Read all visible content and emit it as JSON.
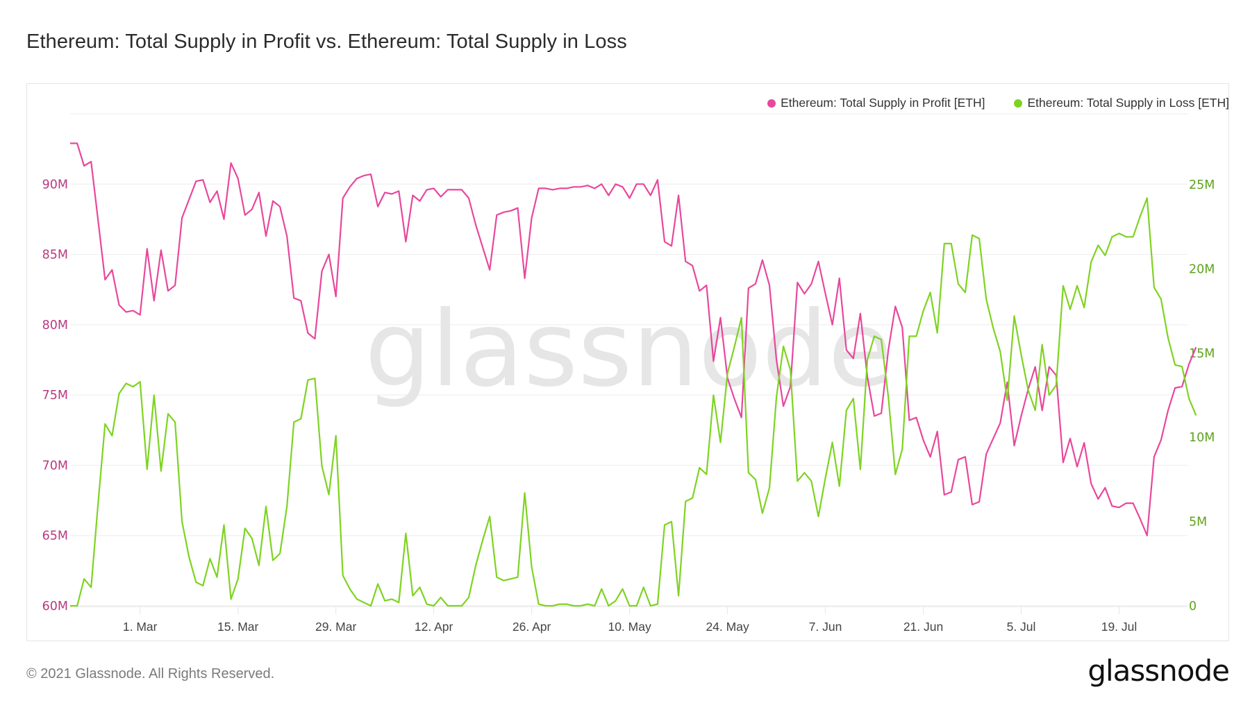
{
  "page": {
    "title": "Ethereum: Total Supply in Profit vs. Ethereum: Total Supply in Loss",
    "footer_copyright": "© 2021 Glassnode. All Rights Reserved.",
    "footer_logo": "glassnode",
    "watermark": "glassnode"
  },
  "chart_data": {
    "type": "line",
    "title": "Ethereum: Total Supply in Profit vs. Ethereum: Total Supply in Loss",
    "xlabel": "",
    "x_start_date": "2021-02-19",
    "x_tick_labels": [
      "1. Mar",
      "15. Mar",
      "29. Mar",
      "12. Apr",
      "26. Apr",
      "10. May",
      "24. May",
      "7. Jun",
      "21. Jun",
      "5. Jul",
      "19. Jul"
    ],
    "x_tick_day_offsets": [
      10,
      24,
      38,
      52,
      66,
      80,
      94,
      108,
      122,
      136,
      150
    ],
    "y_left": {
      "label": "",
      "ylim": [
        60,
        95
      ],
      "unit": "M",
      "ticks": [
        60,
        65,
        70,
        75,
        80,
        85,
        90
      ],
      "tick_labels": [
        "60M",
        "65M",
        "70M",
        "75M",
        "80M",
        "85M",
        "90M"
      ],
      "color": "#b8397f"
    },
    "y_right": {
      "label": "",
      "ylim": [
        0,
        29.2
      ],
      "unit": "M",
      "ticks": [
        0,
        5,
        10,
        15,
        20,
        25
      ],
      "tick_labels": [
        "0",
        "5M",
        "10M",
        "15M",
        "20M",
        "25M"
      ],
      "color": "#5ea31c"
    },
    "grid": true,
    "legend_position": "top-right",
    "series": [
      {
        "name": "Ethereum: Total Supply in Profit [ETH]",
        "axis": "left",
        "color": "#e8479c",
        "values": [
          92.9,
          92.9,
          91.3,
          91.6,
          87.4,
          83.2,
          83.9,
          81.4,
          80.9,
          81.0,
          80.7,
          85.4,
          81.7,
          85.3,
          82.4,
          82.8,
          87.6,
          88.9,
          90.2,
          90.3,
          88.7,
          89.5,
          87.5,
          91.5,
          90.4,
          87.8,
          88.2,
          89.4,
          86.3,
          88.8,
          88.4,
          86.3,
          81.9,
          81.7,
          79.4,
          79.0,
          83.8,
          85.0,
          82.0,
          89.0,
          89.8,
          90.4,
          90.6,
          90.7,
          88.4,
          89.4,
          89.3,
          89.5,
          85.9,
          89.2,
          88.8,
          89.6,
          89.7,
          89.1,
          89.6,
          89.6,
          89.6,
          89.0,
          87.1,
          85.5,
          83.9,
          87.8,
          88.0,
          88.1,
          88.3,
          83.3,
          87.6,
          89.7,
          89.7,
          89.6,
          89.7,
          89.7,
          89.8,
          89.8,
          89.9,
          89.7,
          90.0,
          89.2,
          90.0,
          89.8,
          89.0,
          90.0,
          90.0,
          89.2,
          90.3,
          85.9,
          85.6,
          89.2,
          84.5,
          84.2,
          82.4,
          82.8,
          77.4,
          80.5,
          76.2,
          74.7,
          73.4,
          82.6,
          82.9,
          84.6,
          82.8,
          77.5,
          74.2,
          75.6,
          83.0,
          82.2,
          82.9,
          84.5,
          82.2,
          80.0,
          83.3,
          78.2,
          77.6,
          80.8,
          76.3,
          73.5,
          73.7,
          78.2,
          81.3,
          79.8,
          73.2,
          73.4,
          71.8,
          70.6,
          72.4,
          67.9,
          68.1,
          70.4,
          70.6,
          67.2,
          67.4,
          70.8,
          71.9,
          73.0,
          75.9,
          71.4,
          73.5,
          75.4,
          77.0,
          73.9,
          77.0,
          76.4,
          70.2,
          71.9,
          69.9,
          71.6,
          68.7,
          67.6,
          68.4,
          67.1,
          67.0,
          67.3,
          67.3,
          66.2,
          65.0,
          70.6,
          71.8,
          73.9,
          75.5,
          75.6,
          77.2,
          78.4
        ]
      },
      {
        "name": "Ethereum: Total Supply in Loss [ETH]",
        "axis": "right",
        "color": "#7ed321",
        "values": [
          0.0,
          0.0,
          1.6,
          1.1,
          6.1,
          10.8,
          10.1,
          12.6,
          13.2,
          13.0,
          13.3,
          8.1,
          12.5,
          8.0,
          11.4,
          10.9,
          5.0,
          2.9,
          1.4,
          1.2,
          2.8,
          1.7,
          4.8,
          0.4,
          1.6,
          4.6,
          4.0,
          2.4,
          5.9,
          2.7,
          3.1,
          5.9,
          10.9,
          11.1,
          13.4,
          13.5,
          8.3,
          6.6,
          10.1,
          1.8,
          1.0,
          0.4,
          0.2,
          0.0,
          1.3,
          0.3,
          0.4,
          0.2,
          4.3,
          0.6,
          1.1,
          0.1,
          0.0,
          0.5,
          0.0,
          0.0,
          0.0,
          0.5,
          2.4,
          3.9,
          5.3,
          1.7,
          1.5,
          1.6,
          1.7,
          6.7,
          2.3,
          0.1,
          0.0,
          0.0,
          0.1,
          0.1,
          0.0,
          0.0,
          0.1,
          0.0,
          1.0,
          0.0,
          0.3,
          1.0,
          0.0,
          0.0,
          1.1,
          0.0,
          0.1,
          4.8,
          5.0,
          0.6,
          6.2,
          6.4,
          8.2,
          7.8,
          12.5,
          9.7,
          13.8,
          15.4,
          17.1,
          7.9,
          7.5,
          5.5,
          7.0,
          12.4,
          15.4,
          14.0,
          7.4,
          7.9,
          7.4,
          5.3,
          7.6,
          9.7,
          7.1,
          11.6,
          12.3,
          8.1,
          14.6,
          16.0,
          15.8,
          12.4,
          7.8,
          9.3,
          16.0,
          16.0,
          17.5,
          18.6,
          16.2,
          21.5,
          21.5,
          19.1,
          18.6,
          22.0,
          21.8,
          18.2,
          16.5,
          15.1,
          12.2,
          17.2,
          14.9,
          12.8,
          11.6,
          15.5,
          12.5,
          13.1,
          19.0,
          17.6,
          19.0,
          17.7,
          20.4,
          21.4,
          20.8,
          21.9,
          22.1,
          21.9,
          21.9,
          23.1,
          24.2,
          18.9,
          18.2,
          15.9,
          14.3,
          14.2,
          12.3,
          11.3
        ]
      }
    ]
  }
}
